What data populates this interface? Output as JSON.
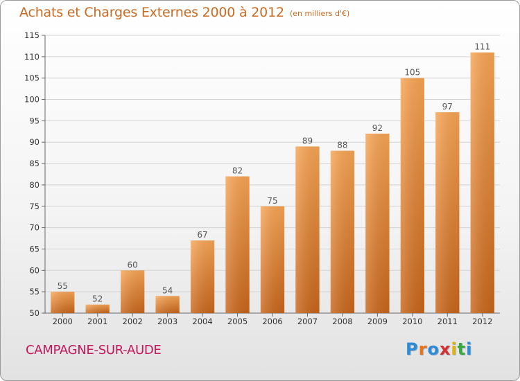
{
  "header": {
    "title": "Achats et Charges Externes 2000 à 2012",
    "subtitle": "(en milliers d'€)"
  },
  "footer": {
    "city": "CAMPAGNE-SUR-AUDE",
    "logo_text": "Proxiti",
    "logo_letters": [
      {
        "ch": "P",
        "color": "#2e8bd6"
      },
      {
        "ch": "r",
        "color": "#e8731a"
      },
      {
        "ch": "o",
        "color": "#2e8bd6"
      },
      {
        "ch": "x",
        "color": "#d62f2f"
      },
      {
        "ch": "i",
        "color": "#e0b400"
      },
      {
        "ch": "t",
        "color": "#3aa83a"
      },
      {
        "ch": "i",
        "color": "#2e8bd6"
      }
    ]
  },
  "chart_data": {
    "type": "bar",
    "title": "Achats et Charges Externes 2000 à 2012",
    "subtitle": "(en milliers d'€)",
    "categories": [
      "2000",
      "2001",
      "2002",
      "2003",
      "2004",
      "2005",
      "2006",
      "2007",
      "2008",
      "2009",
      "2010",
      "2011",
      "2012"
    ],
    "values": [
      55,
      52,
      60,
      54,
      67,
      82,
      75,
      89,
      88,
      92,
      105,
      97,
      111
    ],
    "ylim": [
      50,
      115
    ],
    "yticks": [
      50,
      55,
      60,
      65,
      70,
      75,
      80,
      85,
      90,
      95,
      100,
      105,
      110,
      115
    ],
    "grid": true,
    "bar_color": "#f0913a",
    "bar_color_dark": "#c9661b",
    "label_color": "#555555"
  }
}
